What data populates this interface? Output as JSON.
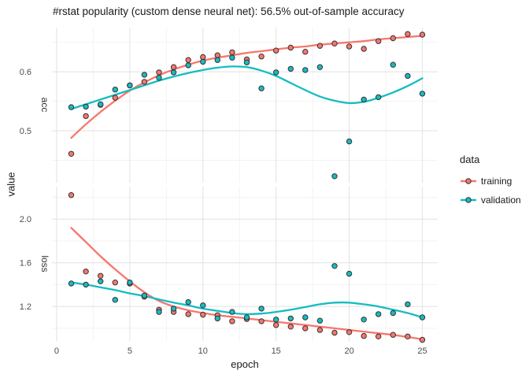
{
  "title": "#rstat popularity (custom dense neural net): 56.5% out-of-sample accuracy",
  "axes": {
    "x_label": "epoch",
    "y_label": "value"
  },
  "facets": [
    {
      "label": "acc"
    },
    {
      "label": "loss"
    }
  ],
  "legend": {
    "title": "data",
    "entries": [
      {
        "label": "training",
        "color": "#F8766D"
      },
      {
        "label": "validation",
        "color": "#15BCC2"
      }
    ]
  },
  "colors": {
    "background": "#ffffff",
    "grid_major": "#e4e4e4",
    "grid_minor": "#f2f2f2",
    "tick_text": "#4d4d4d",
    "point_stroke": "#333333",
    "training": "#F8766D",
    "validation": "#15BCC2"
  },
  "chart_data": {
    "type": "scatter",
    "title": "#rstat popularity (custom dense neural net): 56.5% out-of-sample accuracy",
    "xlabel": "epoch",
    "ylabel": "value",
    "legend_position": "right",
    "grid": true,
    "x": [
      1,
      2,
      3,
      4,
      5,
      6,
      7,
      8,
      9,
      10,
      11,
      12,
      13,
      14,
      15,
      16,
      17,
      18,
      19,
      20,
      21,
      22,
      23,
      24,
      25
    ],
    "xlim": [
      -0.32,
      26.05
    ],
    "x_ticks": [
      0,
      5,
      10,
      15,
      20,
      25
    ],
    "facets": [
      {
        "name": "acc",
        "ylim": [
          0.412,
          0.675
        ],
        "y_ticks": [
          0.5,
          0.6
        ],
        "series": [
          {
            "name": "training",
            "color": "#F8766D",
            "points": [
              0.461,
              0.525,
              0.544,
              0.556,
              0.577,
              0.583,
              0.599,
              0.608,
              0.62,
              0.625,
              0.628,
              0.633,
              0.621,
              0.626,
              0.636,
              0.641,
              0.634,
              0.644,
              0.648,
              0.643,
              0.639,
              0.652,
              0.657,
              0.664,
              0.663
            ],
            "smooth": [
              0.488,
              0.511,
              0.532,
              0.551,
              0.568,
              0.582,
              0.594,
              0.604,
              0.612,
              0.619,
              0.624,
              0.628,
              0.632,
              0.635,
              0.638,
              0.641,
              0.643,
              0.646,
              0.648,
              0.65,
              0.652,
              0.655,
              0.657,
              0.659,
              0.661
            ]
          },
          {
            "name": "validation",
            "color": "#15BCC2",
            "points": [
              0.54,
              0.541,
              0.545,
              0.57,
              0.577,
              0.595,
              0.59,
              0.599,
              0.611,
              0.617,
              0.62,
              0.624,
              0.616,
              0.572,
              0.599,
              0.605,
              0.603,
              0.608,
              0.423,
              0.482,
              0.553,
              0.557,
              0.612,
              0.593,
              0.563
            ],
            "smooth": [
              0.537,
              0.545,
              0.553,
              0.561,
              0.569,
              0.577,
              0.585,
              0.592,
              0.598,
              0.603,
              0.607,
              0.609,
              0.608,
              0.602,
              0.593,
              0.581,
              0.569,
              0.558,
              0.551,
              0.547,
              0.549,
              0.556,
              0.565,
              0.576,
              0.589
            ]
          }
        ]
      },
      {
        "name": "loss",
        "ylim": [
          0.884,
          2.297
        ],
        "y_ticks": [
          1.2,
          1.6,
          2.0
        ],
        "series": [
          {
            "name": "training",
            "color": "#F8766D",
            "points": [
              2.22,
              1.52,
              1.48,
              1.42,
              1.41,
              1.29,
              1.17,
              1.15,
              1.13,
              1.125,
              1.12,
              1.065,
              1.085,
              1.065,
              1.03,
              1.015,
              1.0,
              0.985,
              0.96,
              0.965,
              0.93,
              0.925,
              0.94,
              0.925,
              0.895
            ],
            "smooth": [
              1.92,
              1.79,
              1.66,
              1.54,
              1.43,
              1.33,
              1.25,
              1.2,
              1.165,
              1.14,
              1.12,
              1.105,
              1.09,
              1.075,
              1.06,
              1.045,
              1.03,
              1.015,
              1.0,
              0.985,
              0.97,
              0.955,
              0.94,
              0.92,
              0.9
            ]
          },
          {
            "name": "validation",
            "color": "#15BCC2",
            "points": [
              1.41,
              1.4,
              1.43,
              1.26,
              1.42,
              1.3,
              1.15,
              1.18,
              1.24,
              1.21,
              1.09,
              1.15,
              1.1,
              1.18,
              1.08,
              1.09,
              1.1,
              1.07,
              1.57,
              1.5,
              1.08,
              1.13,
              1.14,
              1.22,
              1.1
            ],
            "smooth": [
              1.42,
              1.4,
              1.375,
              1.35,
              1.32,
              1.295,
              1.265,
              1.235,
              1.21,
              1.18,
              1.16,
              1.14,
              1.13,
              1.135,
              1.15,
              1.17,
              1.195,
              1.22,
              1.235,
              1.235,
              1.22,
              1.2,
              1.17,
              1.14,
              1.1
            ]
          }
        ]
      }
    ]
  }
}
